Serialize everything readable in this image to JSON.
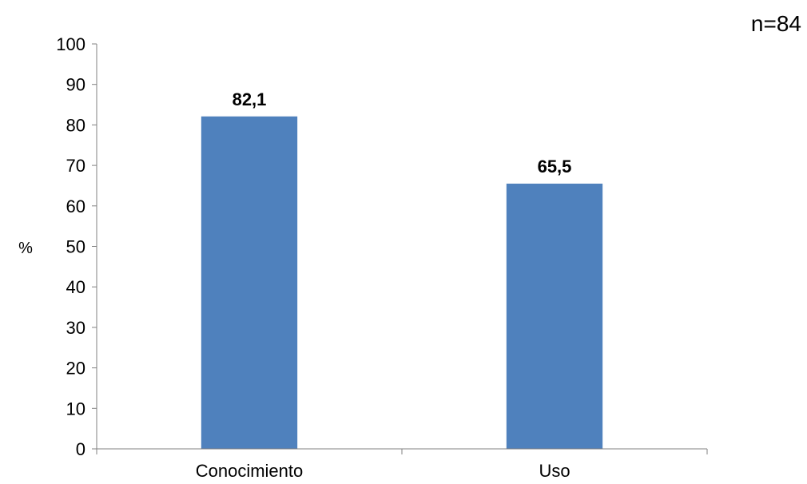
{
  "chart_data": {
    "type": "bar",
    "categories": [
      "Conocimiento",
      "Uso"
    ],
    "values": [
      82.1,
      65.5
    ],
    "data_labels": [
      "82,1",
      "65,5"
    ],
    "title": "",
    "xlabel": "",
    "ylabel": "%",
    "ylim": [
      0,
      100
    ],
    "y_ticks": [
      0,
      10,
      20,
      30,
      40,
      50,
      60,
      70,
      80,
      90,
      100
    ],
    "annotation": "n=84",
    "bar_color": "#4f81bd",
    "grid": false,
    "legend": "none"
  }
}
